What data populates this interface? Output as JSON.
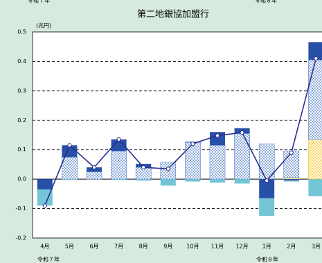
{
  "chart_data": {
    "type": "stacked-bar-line",
    "title": "第二地銀協加盟行",
    "unit_label": "(兆円)",
    "era_labels": [
      "令和７年",
      "令和８年"
    ],
    "categories": [
      "4月",
      "5月",
      "6月",
      "7月",
      "8月",
      "9月",
      "10月",
      "11月",
      "12月",
      "1月",
      "2月",
      "3月"
    ],
    "ylim": [
      -0.2,
      0.5
    ],
    "yticks": [
      {
        "value": -0.2,
        "label": "-0.2"
      },
      {
        "value": -0.1,
        "label": "-0.1"
      },
      {
        "value": 0,
        "label": "0.0"
      },
      0.1,
      0.2,
      0.3,
      0.4,
      0.5
    ],
    "grid": true,
    "series": [
      {
        "color": "#f5b800",
        "pattern": "dots",
        "values": [
          0,
          0,
          0,
          0,
          0,
          0,
          0,
          0,
          0,
          0,
          0.005,
          0.135
        ]
      },
      {
        "color": "#4a78c8",
        "pattern": "dots",
        "values": [
          0,
          0.075,
          0.025,
          0.095,
          0.04,
          0.058,
          0.125,
          0.115,
          0.155,
          0.12,
          0.09,
          0.27
        ]
      },
      {
        "color": "#2850a8",
        "values": [
          -0.035,
          0.04,
          0.015,
          0.04,
          0.012,
          0,
          0.002,
          0.045,
          0.018,
          -0.065,
          -0.005,
          0.06
        ]
      },
      {
        "color": "#74c6d6",
        "values": [
          -0.055,
          -0.003,
          0,
          -0.003,
          -0.005,
          -0.022,
          -0.008,
          -0.012,
          -0.015,
          -0.06,
          -0.003,
          -0.058
        ]
      }
    ],
    "line": {
      "color": "#2b2f8c",
      "values": [
        -0.09,
        0.115,
        0.04,
        0.135,
        0.04,
        0.035,
        0.12,
        0.148,
        0.158,
        -0.005,
        0.09,
        0.41
      ]
    }
  }
}
